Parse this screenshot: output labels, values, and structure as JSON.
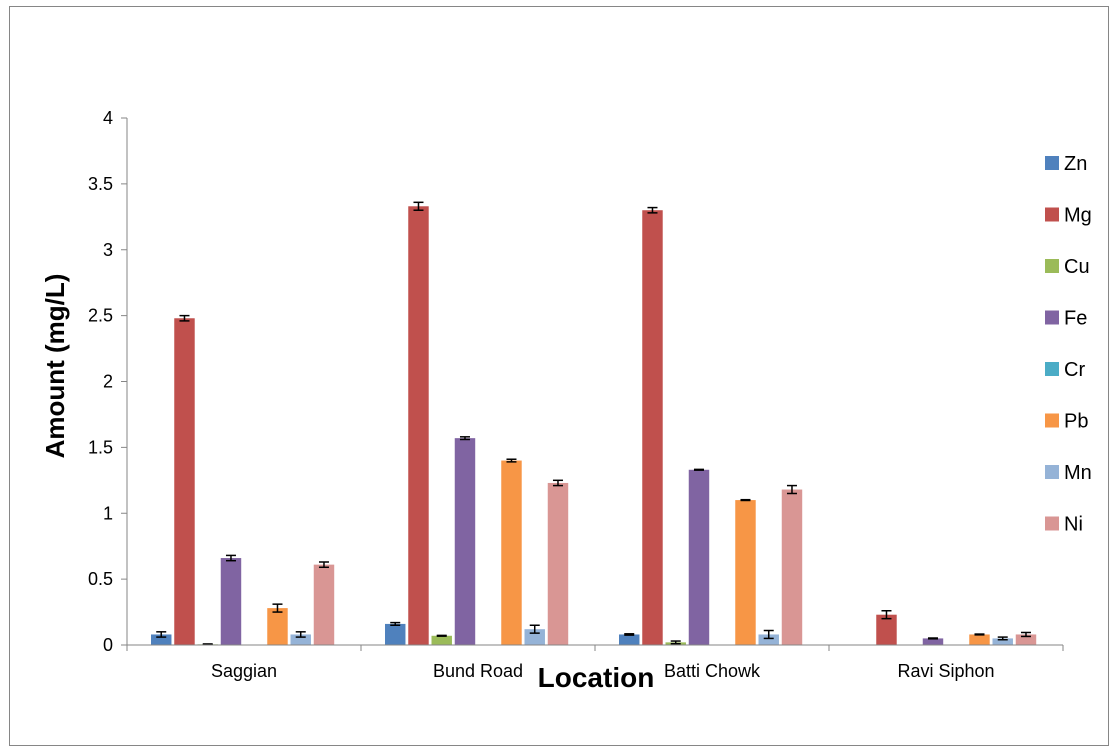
{
  "chart_data": {
    "type": "bar",
    "title": "",
    "xlabel": "Location",
    "ylabel": "Amount (mg/L)",
    "ylim": [
      0,
      4
    ],
    "yticks": [
      "0",
      "0.5",
      "1",
      "1.5",
      "2",
      "2.5",
      "3",
      "3.5",
      "4"
    ],
    "grid": false,
    "legend_position": "right",
    "error_bars": true,
    "categories": [
      "Saggian",
      "Bund Road",
      "Batti Chowk",
      "Ravi Siphon"
    ],
    "series": [
      {
        "name": "Zn",
        "color": "#4F81BD",
        "values": [
          0.08,
          0.16,
          0.08,
          0
        ],
        "errors": [
          0.02,
          0.01,
          0.005,
          0
        ]
      },
      {
        "name": "Mg",
        "color": "#C0504D",
        "values": [
          2.48,
          3.33,
          3.3,
          0.23
        ],
        "errors": [
          0.02,
          0.03,
          0.02,
          0.03
        ]
      },
      {
        "name": "Cu",
        "color": "#9BBB59",
        "values": [
          0.005,
          0.07,
          0.02,
          0
        ],
        "errors": [
          0.003,
          0.003,
          0.01,
          0
        ]
      },
      {
        "name": "Fe",
        "color": "#8064A2",
        "values": [
          0.66,
          1.57,
          1.33,
          0.05
        ],
        "errors": [
          0.02,
          0.01,
          0.003,
          0.003
        ]
      },
      {
        "name": "Cr",
        "color": "#4BACC6",
        "values": [
          0,
          0,
          0,
          0
        ],
        "errors": [
          0,
          0,
          0,
          0
        ]
      },
      {
        "name": "Pb",
        "color": "#F79646",
        "values": [
          0.28,
          1.4,
          1.1,
          0.08
        ],
        "errors": [
          0.03,
          0.01,
          0.003,
          0.003
        ]
      },
      {
        "name": "Mn",
        "color": "#95B3D7",
        "values": [
          0.08,
          0.12,
          0.08,
          0.05
        ],
        "errors": [
          0.02,
          0.03,
          0.03,
          0.01
        ]
      },
      {
        "name": "Ni",
        "color": "#D99694",
        "values": [
          0.61,
          1.23,
          1.18,
          0.08
        ],
        "errors": [
          0.02,
          0.02,
          0.03,
          0.015
        ]
      }
    ]
  }
}
